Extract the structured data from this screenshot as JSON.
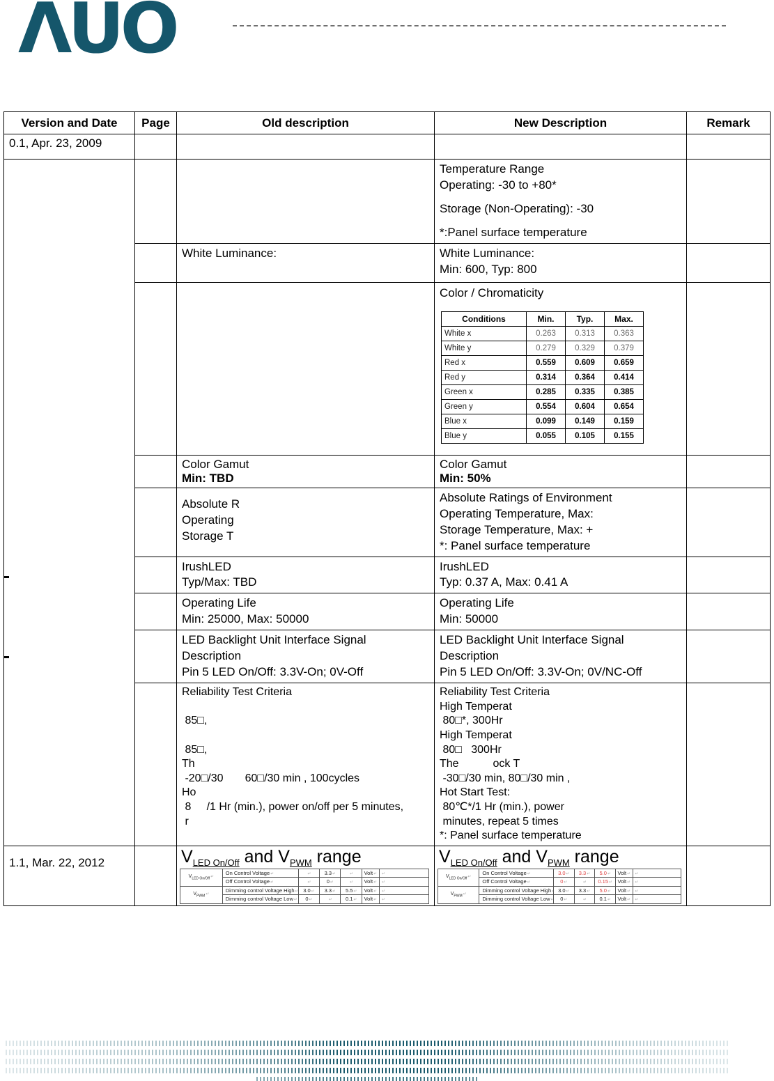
{
  "logo": {
    "text": "ΛUO"
  },
  "return_mark": "↵",
  "colors": {
    "accent_teal": "#15566B",
    "changed_value_red": "#E04040"
  },
  "revision_table": {
    "headers": {
      "version": "Version and Date",
      "page": "Page",
      "old": "Old description",
      "new": "New Description",
      "remark": "Remark"
    },
    "version_entries": {
      "v01": "0.1, Apr. 23, 2009",
      "v11": "1.1, Mar. 22, 2012"
    },
    "rows": {
      "temperature": {
        "old_lines": [],
        "new_lines": [
          "Temperature Range",
          "Operating: -30 to +80*",
          "",
          "Storage (Non-Operating): -30",
          "",
          "*:Panel surface temperature"
        ]
      },
      "white_luminance": {
        "old_lines": [
          "White Luminance:"
        ],
        "new_lines": [
          "White Luminance:",
          "Min: 600, Typ: 800"
        ]
      },
      "chromaticity": {
        "new_title": "Color / Chromaticity"
      },
      "color_gamut": {
        "old_title": "Color Gamut",
        "old_value": "Min: TBD",
        "new_title": "Color Gamut",
        "new_value": "Min: 50%"
      },
      "absolute_ratings": {
        "old_lines": [
          "Absolute R",
          "Operating",
          "Storage T"
        ],
        "new_lines": [
          "Absolute Ratings of Environment",
          "Operating Temperature, Max:",
          "Storage Temperature, Max: +",
          "*: Panel surface temperature"
        ]
      },
      "irush_led": {
        "old_lines": [
          "IrushLED",
          "Typ/Max: TBD"
        ],
        "new_lines": [
          "IrushLED",
          "Typ: 0.37 A, Max: 0.41 A"
        ]
      },
      "operating_life": {
        "old_lines": [
          "Operating Life",
          "Min: 25000, Max: 50000"
        ],
        "new_lines": [
          "Operating Life",
          "Min: 50000"
        ]
      },
      "led_backlight": {
        "old_lines": [
          "LED Backlight Unit Interface Signal",
          "Description",
          "Pin 5 LED On/Off: 3.3V-On; 0V-Off"
        ],
        "new_lines": [
          "LED Backlight Unit Interface Signal",
          "Description",
          "Pin 5 LED On/Off: 3.3V-On; 0V/NC-Off"
        ]
      },
      "reliability": {
        "old_lines": [
          "Reliability Test Criteria",
          "",
          " 85□,",
          "",
          " 85□,",
          "Th",
          " -20□/30       60□/30 min , 100cycles",
          "Ho",
          " 8     /1 Hr (min.), power on/off per 5 minutes,",
          " r"
        ],
        "new_lines": [
          "Reliability Test Criteria",
          "High Temperat",
          " 80□*, 300Hr",
          "High Temperat",
          " 80□   300Hr",
          "The           ock T",
          " -30□/30 min, 80□/30 min ,",
          "Hot Start Test:",
          " 80℃*/1 Hr (min.), power",
          " minutes, repeat 5 times",
          "*: Panel surface temperature"
        ]
      }
    }
  },
  "chromaticity_table": {
    "headers": [
      "Conditions",
      "Min.",
      "Typ.",
      "Max."
    ],
    "rows": [
      {
        "condition": "White x",
        "min": "0.263",
        "typ": "0.313",
        "max": "0.363",
        "emph": false
      },
      {
        "condition": "White y",
        "min": "0.279",
        "typ": "0.329",
        "max": "0.379",
        "emph": false
      },
      {
        "condition": "Red x",
        "min": "0.559",
        "typ": "0.609",
        "max": "0.659",
        "emph": true
      },
      {
        "condition": "Red y",
        "min": "0.314",
        "typ": "0.364",
        "max": "0.414",
        "emph": true
      },
      {
        "condition": "Green x",
        "min": "0.285",
        "typ": "0.335",
        "max": "0.385",
        "emph": true
      },
      {
        "condition": "Green y",
        "min": "0.554",
        "typ": "0.604",
        "max": "0.654",
        "emph": true
      },
      {
        "condition": "Blue x",
        "min": "0.099",
        "typ": "0.149",
        "max": "0.159",
        "emph": true
      },
      {
        "condition": "Blue y",
        "min": "0.055",
        "typ": "0.105",
        "max": "0.155",
        "emph": true
      }
    ]
  },
  "vrange": {
    "title": {
      "v1": "V",
      "sub1": "LED On/Off",
      "mid": " and V",
      "sub2": "PWM",
      "tail": " range"
    },
    "old_table": {
      "groups": [
        {
          "v": "V",
          "sub": "LED On/Off",
          "rows": [
            {
              "param": "On Control Voltage",
              "cells": [
                {
                  "t": ""
                },
                {
                  "t": "3.3"
                },
                {
                  "t": ""
                },
                {
                  "t": "Volt"
                },
                {
                  "t": ""
                }
              ]
            },
            {
              "param": "Off Control Voltage",
              "cells": [
                {
                  "t": ""
                },
                {
                  "t": "0"
                },
                {
                  "t": ""
                },
                {
                  "t": "Volt"
                },
                {
                  "t": ""
                }
              ]
            }
          ]
        },
        {
          "v": "V",
          "sub": "PWM",
          "rows": [
            {
              "param": "Dimming control Voltage High",
              "cells": [
                {
                  "t": "3.0"
                },
                {
                  "t": "3.3"
                },
                {
                  "t": "5.5"
                },
                {
                  "t": "Volt"
                },
                {
                  "t": ""
                }
              ]
            },
            {
              "param": "Dimming control Voltage Low",
              "cells": [
                {
                  "t": "0"
                },
                {
                  "t": ""
                },
                {
                  "t": "0.1"
                },
                {
                  "t": "Volt"
                },
                {
                  "t": ""
                }
              ]
            }
          ]
        }
      ]
    },
    "new_table": {
      "groups": [
        {
          "v": "V",
          "sub": "LED On/Off",
          "rows": [
            {
              "param": "On Control Voltage",
              "cells": [
                {
                  "t": "3.0",
                  "red": true
                },
                {
                  "t": "3.3",
                  "red": true
                },
                {
                  "t": "5.0",
                  "red": true
                },
                {
                  "t": "Volt"
                },
                {
                  "t": ""
                }
              ]
            },
            {
              "param": "Off Control Voltage",
              "cells": [
                {
                  "t": "0",
                  "red": true
                },
                {
                  "t": ""
                },
                {
                  "t": "0.15",
                  "red": true
                },
                {
                  "t": "Volt"
                },
                {
                  "t": ""
                }
              ]
            }
          ]
        },
        {
          "v": "V",
          "sub": "PWM",
          "rows": [
            {
              "param": "Dimming control Voltage High",
              "cells": [
                {
                  "t": "3.0"
                },
                {
                  "t": "3.3"
                },
                {
                  "t": "5.0",
                  "red": true
                },
                {
                  "t": "Volt"
                },
                {
                  "t": ""
                }
              ]
            },
            {
              "param": "Dimming control Voltage Low",
              "cells": [
                {
                  "t": "0"
                },
                {
                  "t": ""
                },
                {
                  "t": "0.1"
                },
                {
                  "t": "Volt"
                },
                {
                  "t": ""
                }
              ]
            }
          ]
        }
      ]
    }
  }
}
